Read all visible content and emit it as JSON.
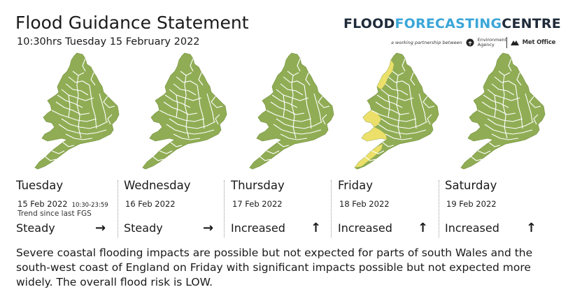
{
  "header": {
    "title": "Flood Guidance Statement",
    "subtitle": "10:30hrs Tuesday 15 February 2022"
  },
  "logo": {
    "word_1": "FLOOD",
    "word_2": "FORECASTING",
    "word_3": "CENTRE",
    "tagline": "a working partnership between",
    "partner_1": "Environment Agency",
    "partner_2": "Met Office"
  },
  "colors": {
    "very_low_risk": "#90ad55",
    "low_risk": "#ece06a",
    "boundary": "#ffffff",
    "logo_dark": "#1f2b3a",
    "logo_accent": "#3aa6d8"
  },
  "days": [
    {
      "name": "Tuesday",
      "date": "15 Feb 2022",
      "time": "10:30-23:59",
      "trend_label": "Trend since last FGS",
      "trend": "Steady",
      "arrow": "→",
      "arrow_icon": "arrow-right-icon"
    },
    {
      "name": "Wednesday",
      "date": "16 Feb 2022",
      "trend": "Steady",
      "arrow": "→",
      "arrow_icon": "arrow-right-icon"
    },
    {
      "name": "Thursday",
      "date": "17 Feb 2022",
      "trend": "Increased",
      "arrow": "↑",
      "arrow_icon": "arrow-up-icon"
    },
    {
      "name": "Friday",
      "date": "18 Feb 2022",
      "trend": "Increased",
      "arrow": "↑",
      "arrow_icon": "arrow-up-icon"
    },
    {
      "name": "Saturday",
      "date": "19 Feb 2022",
      "trend": "Increased",
      "arrow": "↑",
      "arrow_icon": "arrow-up-icon"
    }
  ],
  "statement": "Severe coastal flooding impacts are possible but not expected for parts of south Wales and the south-west coast of England on Friday with significant impacts possible but not expected more widely. The overall flood risk is LOW."
}
